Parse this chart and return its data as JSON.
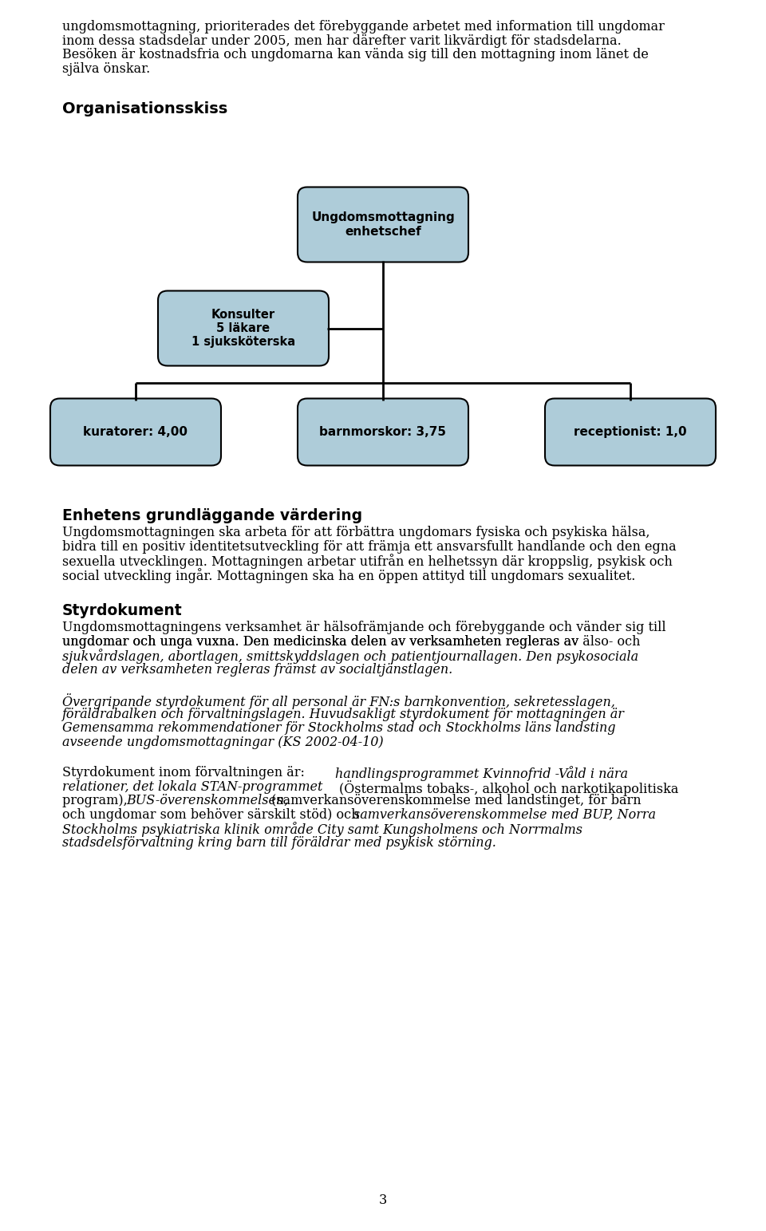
{
  "background_color": "#ffffff",
  "page_width": 9.6,
  "page_height": 15.43,
  "top_line1": "ungdomsmottagning, prioriterades det förebyggande arbetet med information till ungdomar",
  "top_line2": "inom dessa stadsdelar under 2005, men har därefter varit likvärdigt för stadsdelarna.",
  "top_line3": "Besöken är kostnadsfria och ungdomarna kan vända sig till den mottagning inom länet de",
  "top_line4": "själva önskar.",
  "section_org_title": "Organisationsskiss",
  "box_color": "#aeccd9",
  "box_edge_color": "#000000",
  "box_top_label": "Ungdomsmottagning\nenhetschef",
  "box_left_label": "Konsulter\n5 läkare\n1 sjuksköterska",
  "box_bottom_left_label": "kuratorer: 4,00",
  "box_bottom_mid_label": "barnmorskor: 3,75",
  "box_bottom_right_label": "receptionist: 1,0",
  "section_enhetens_title": "Enhetens grundläggande värdering",
  "enhetens_line1": "Ungdomsmottagningen ska arbeta för att förbättra ungdomars fysiska och psykiska hälsa,",
  "enhetens_line2": "bidra till en positiv identitetsutveckling för att främja ett ansvarsfullt handlande och den egna",
  "enhetens_line3": "sexuella utvecklingen. Mottagningen arbetar utifrån en helhetssyn där kroppslig, psykisk och",
  "enhetens_line4": "social utveckling ingår. Mottagningen ska ha en öppen attityd till ungdomars sexualitet.",
  "section_styrdokument_title": "Styrdokument",
  "styrd_line1": "Ungdomsmottagningens verksamhet är hälsofrämjande och förebyggande och vänder sig till",
  "styrd_line2": "ungdomar och unga vuxna. Den medicinska delen av verksamheten regleras av älso- och",
  "styrd_line3_norm": "sjukvårdslagen, abortlagen, smittskyddslagen och patientjournallagen.",
  "styrd_line4": "Den psykosociala",
  "styrd_line5": "delen av verksamheten regleras främst av socialtjänstlagen.",
  "styrd2_line1": "Övergripande styrdokument för all personal är FN:s barnkonvention, sekretesslagen,",
  "styrd2_line2": "föräldrabalken och förvaltningslagen. Huvudsakligt styrdokument för mottagningen är",
  "styrd2_line3": "Gemensamma rekommendationer för Stockholms stad och Stockholms läns landsting",
  "styrd2_line4": "avseende ungdomsmottagningar (KS 2002-04-10)",
  "styrd3_line1a": "Styrdokument inom förvaltningen är: ",
  "styrd3_line1b": "handlingsprogrammet Kvinnofrid -Våld i nära",
  "styrd3_line2a": "relationer, det lokala STAN-programmet",
  "styrd3_line2b": " (Östermalms tobaks-, alkohol och narkotikapolitiska",
  "styrd3_line3": "program), BUS-överenskommelsen,",
  "styrd3_line3b": " (samverkansöverenskommelse med landstinget, för barn",
  "styrd3_line4a": "och ungdomar som behöver särskilt stöd) och ",
  "styrd3_line4b": "samverkansöverenskommelse med BUP, Norra",
  "styrd3_line5": "Stockholms psykiatriska klinik område City samt Kungsholmens och Norrmalms",
  "styrd3_line6": "stadsdelsförvaltning kring barn till föräldrar med psykisk störning.",
  "page_number": "3"
}
